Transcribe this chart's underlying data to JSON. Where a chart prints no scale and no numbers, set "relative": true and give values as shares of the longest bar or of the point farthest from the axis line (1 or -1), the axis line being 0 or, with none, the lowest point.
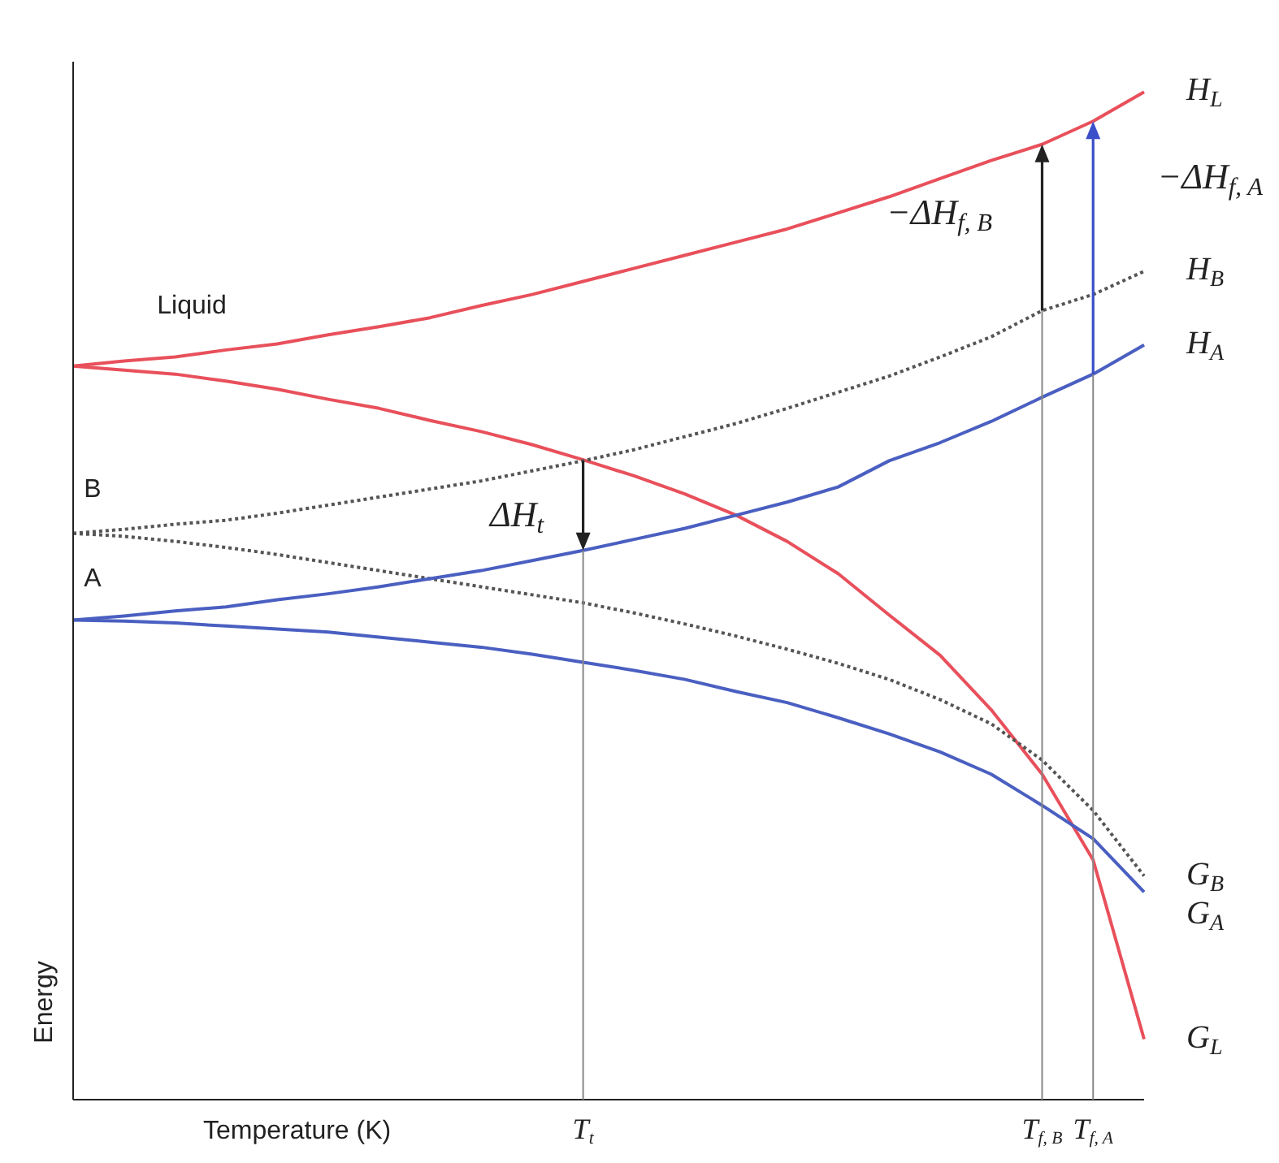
{
  "chart_data": {
    "type": "line",
    "relative": true,
    "xlabel": "Temperature (K)",
    "ylabel": "Energy",
    "categories": [
      null,
      null,
      null,
      null,
      null,
      null,
      null,
      null,
      null,
      null,
      "T$_{t}$",
      null,
      null,
      null,
      null,
      null,
      null,
      null,
      null,
      "T$_{f, B}$",
      "T$_{f, A}$",
      null
    ],
    "series": [
      {
        "name": "H$_{L}$",
        "color": "#e8505b",
        "line_style": "solid",
        "values": [
          0.728,
          0.733,
          0.737,
          0.744,
          0.75,
          0.759,
          0.767,
          0.776,
          0.788,
          0.799,
          0.812,
          0.825,
          0.838,
          0.851,
          0.864,
          0.88,
          0.896,
          0.914,
          0.932,
          0.948,
          0.971,
          1.0
        ]
      },
      {
        "name": "G$_{L}$",
        "color": "#e8505b",
        "line_style": "solid",
        "values": [
          0.728,
          0.724,
          0.72,
          0.713,
          0.705,
          0.695,
          0.686,
          0.674,
          0.663,
          0.65,
          0.635,
          0.619,
          0.601,
          0.58,
          0.554,
          0.522,
          0.481,
          0.441,
          0.387,
          0.323,
          0.238,
          0.06
        ]
      },
      {
        "name": "H$_{B}$",
        "color": "#555555",
        "line_style": "dotted",
        "values": [
          0.562,
          0.566,
          0.571,
          0.575,
          0.582,
          0.59,
          0.598,
          0.606,
          0.614,
          0.624,
          0.634,
          0.645,
          0.658,
          0.671,
          0.686,
          0.702,
          0.718,
          0.737,
          0.757,
          0.783,
          0.799,
          0.822
        ]
      },
      {
        "name": "G$_{B}$",
        "color": "#555555",
        "line_style": "dotted",
        "values": [
          0.562,
          0.559,
          0.554,
          0.548,
          0.541,
          0.533,
          0.525,
          0.517,
          0.509,
          0.501,
          0.493,
          0.483,
          0.472,
          0.46,
          0.447,
          0.433,
          0.417,
          0.397,
          0.373,
          0.337,
          0.287,
          0.222
        ]
      },
      {
        "name": "H$_{A}$",
        "color": "#4a5fc1",
        "line_style": "solid",
        "values": [
          0.476,
          0.48,
          0.485,
          0.489,
          0.496,
          0.502,
          0.509,
          0.517,
          0.525,
          0.535,
          0.545,
          0.556,
          0.567,
          0.58,
          0.593,
          0.608,
          0.634,
          0.652,
          0.673,
          0.697,
          0.72,
          0.749
        ]
      },
      {
        "name": "G$_{A}$",
        "color": "#4a5fc1",
        "line_style": "solid",
        "values": [
          0.476,
          0.475,
          0.473,
          0.47,
          0.467,
          0.464,
          0.459,
          0.454,
          0.449,
          0.442,
          0.434,
          0.426,
          0.417,
          0.405,
          0.394,
          0.379,
          0.363,
          0.345,
          0.323,
          0.292,
          0.259,
          0.206
        ]
      }
    ],
    "ref_lines": [
      {
        "axis": "x",
        "value": "T$_{t}$"
      },
      {
        "axis": "x",
        "value": "T$_{f, B}$"
      },
      {
        "axis": "x",
        "value": "T$_{f, A}$"
      }
    ],
    "annotations": [
      "Liquid",
      "B",
      "A",
      "ΔH$_{t}$",
      "−ΔH$_{f, B}$",
      "−ΔH$_{f, A}$"
    ]
  }
}
